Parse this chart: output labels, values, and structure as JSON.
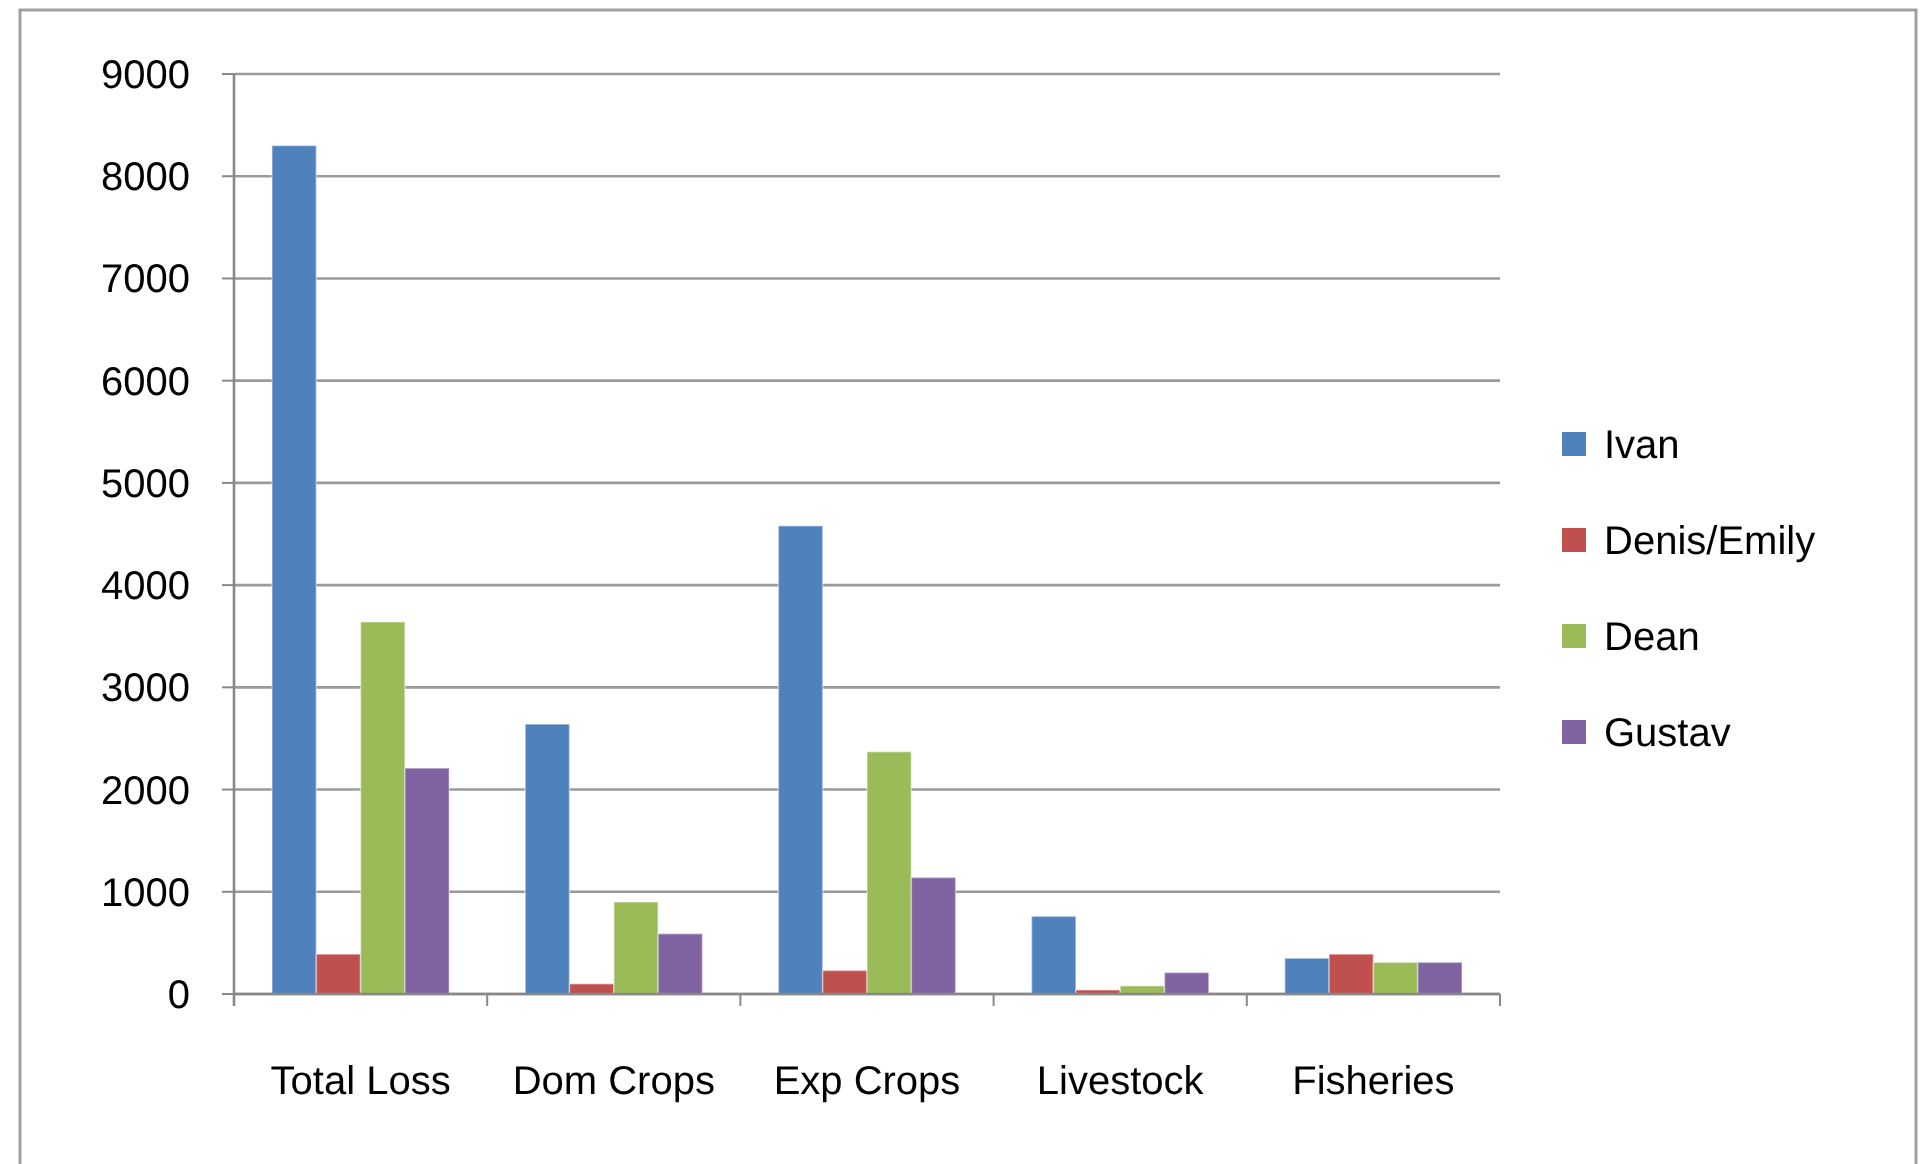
{
  "chart_data": {
    "type": "bar",
    "categories": [
      "Total Loss",
      "Dom Crops",
      "Exp Crops",
      "Livestock",
      "Fisheries"
    ],
    "series": [
      {
        "name": "Ivan",
        "color": "#4f81bd",
        "values": [
          8300,
          2640,
          4580,
          760,
          350
        ]
      },
      {
        "name": "Denis/Emily",
        "color": "#c0504d",
        "values": [
          390,
          100,
          230,
          40,
          390
        ]
      },
      {
        "name": "Dean",
        "color": "#9bbb59",
        "values": [
          3640,
          900,
          2370,
          80,
          310
        ]
      },
      {
        "name": "Gustav",
        "color": "#8064a2",
        "values": [
          2210,
          590,
          1140,
          210,
          310
        ]
      }
    ],
    "ylim": [
      0,
      9000
    ],
    "yticks": [
      0,
      1000,
      2000,
      3000,
      4000,
      5000,
      6000,
      7000,
      8000,
      9000
    ],
    "grid": "y",
    "legend": "right"
  }
}
